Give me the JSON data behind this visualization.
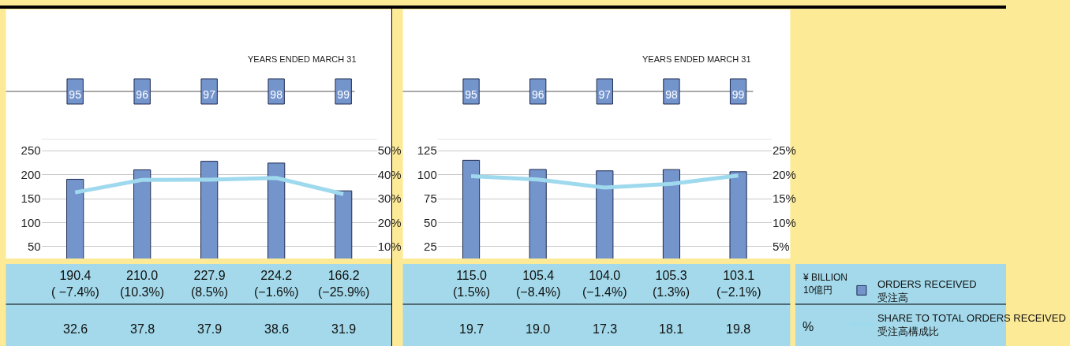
{
  "chart_data": [
    {
      "type": "bar",
      "title": "YEARS ENDED MARCH 31",
      "categories": [
        "95",
        "96",
        "97",
        "98",
        "99"
      ],
      "annotations": [
        "¥ BILLION\n10億円",
        "%"
      ],
      "ylim": [
        25,
        275
      ],
      "yticks": [
        50,
        100,
        150,
        200,
        250
      ],
      "y2lim": [
        5,
        55
      ],
      "y2ticks": [
        {
          "value": 10,
          "label": "10%"
        },
        {
          "value": 20,
          "label": "20%"
        },
        {
          "value": 30,
          "label": "30%"
        },
        {
          "value": 40,
          "label": "40%"
        },
        {
          "value": 50,
          "label": "50%"
        }
      ],
      "grid": "y",
      "legend": "right",
      "tick_labels": "xy",
      "series": [
        {
          "name": "ORDERS RECEIVED\n受注高",
          "color": "#7494cc",
          "values": [
            190.4,
            210.0,
            227.9,
            224.2,
            166.2
          ],
          "value_labels": [
            "190.4\n( −7.4%)",
            "210.0\n(10.3%)",
            "227.9\n(8.5%)",
            "224.2\n(−1.6%)",
            "166.2\n(−25.9%)"
          ]
        },
        {
          "name": "SHARE TO TOTAL ORDERS RECEIVED\n受注高構成比",
          "type": "line",
          "axis": "y2",
          "color": "#9fd9ee",
          "values": [
            32.6,
            37.8,
            37.9,
            38.6,
            31.9
          ],
          "value_labels": [
            "32.6",
            "37.8",
            "37.9",
            "38.6",
            "31.9"
          ]
        }
      ]
    },
    {
      "type": "bar",
      "title": "YEARS ENDED MARCH 31",
      "categories": [
        "95",
        "96",
        "97",
        "98",
        "99"
      ],
      "ylim": [
        12.5,
        137.5
      ],
      "yticks": [
        25,
        50,
        75,
        100,
        125
      ],
      "y2lim": [
        2.5,
        27.5
      ],
      "y2ticks": [
        {
          "value": 5,
          "label": "5%"
        },
        {
          "value": 10,
          "label": "10%"
        },
        {
          "value": 15,
          "label": "15%"
        },
        {
          "value": 20,
          "label": "20%"
        },
        {
          "value": 25,
          "label": "25%"
        }
      ],
      "grid": "y",
      "tick_labels": "xy",
      "series": [
        {
          "color": "#7494cc",
          "values": [
            115.0,
            105.4,
            104.0,
            105.3,
            103.1
          ],
          "value_labels": [
            "115.0\n(1.5%)",
            "105.4\n(−8.4%)",
            "104.0\n(−1.4%)",
            "105.3\n(1.3%)",
            "103.1\n(−2.1%)"
          ]
        },
        {
          "type": "line",
          "axis": "y2",
          "color": "#9fd9ee",
          "values": [
            19.7,
            19.0,
            17.3,
            18.1,
            19.8
          ],
          "value_labels": [
            "19.7",
            "19.0",
            "17.3",
            "18.1",
            "19.8"
          ]
        }
      ]
    }
  ]
}
